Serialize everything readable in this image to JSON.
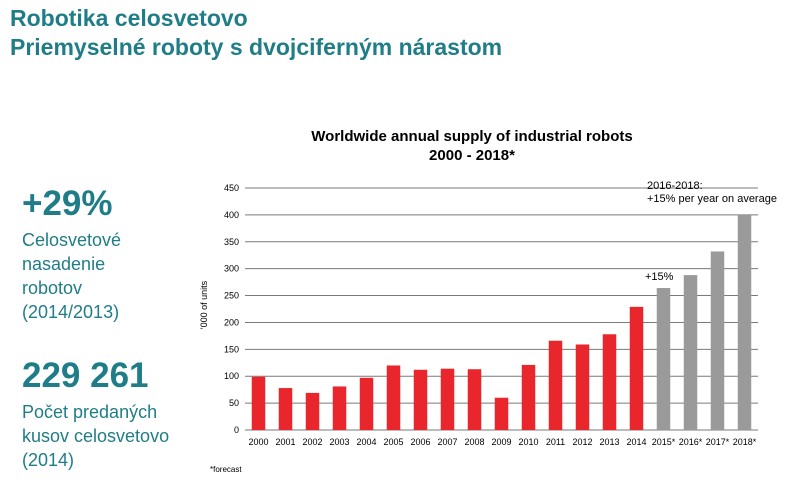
{
  "slide": {
    "title_lines": [
      "Robotika celosvetovo",
      "Priemyselné roboty s dvojciferným nárastom"
    ],
    "accent_color": "#1f7d87"
  },
  "stats": [
    {
      "value": "+29%",
      "caption_lines": [
        "Celosvetové",
        "nasadenie",
        "robotov",
        "(2014/2013)"
      ]
    },
    {
      "value": "229 261",
      "caption_lines": [
        "Počet predaných",
        "kusov celosvetovo",
        "(2014)"
      ]
    }
  ],
  "chart_data": {
    "type": "bar",
    "title_lines": [
      "Worldwide annual supply of industrial robots",
      "2000 - 2018*"
    ],
    "ylabel": "'000 of units",
    "xlabel": "",
    "ylim": [
      0,
      450
    ],
    "yticks": [
      0,
      50,
      100,
      150,
      200,
      250,
      300,
      350,
      400,
      450
    ],
    "grid": true,
    "categories": [
      "2000",
      "2001",
      "2002",
      "2003",
      "2004",
      "2005",
      "2006",
      "2007",
      "2008",
      "2009",
      "2010",
      "2011",
      "2012",
      "2013",
      "2014",
      "2015*",
      "2016*",
      "2017*",
      "2018*"
    ],
    "values": [
      99,
      78,
      69,
      81,
      97,
      120,
      112,
      114,
      113,
      60,
      121,
      166,
      159,
      178,
      229,
      264,
      288,
      332,
      400
    ],
    "is_forecast": [
      false,
      false,
      false,
      false,
      false,
      false,
      false,
      false,
      false,
      false,
      false,
      false,
      false,
      false,
      false,
      true,
      true,
      true,
      true
    ],
    "colors": {
      "actual": "#e8262b",
      "forecast": "#9a9a9a",
      "grid": "#7a7a7a"
    },
    "annotations": [
      {
        "text": "+15%"
      },
      {
        "text_lines": [
          "2016-2018:",
          "+15% per year on average"
        ]
      }
    ],
    "footnote": "*forecast"
  }
}
